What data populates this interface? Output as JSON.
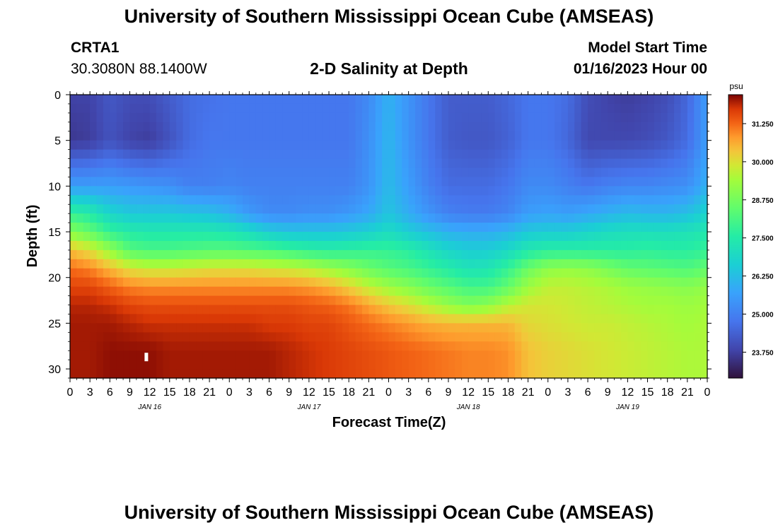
{
  "header": {
    "title": "University of Southern Mississippi Ocean Cube (AMSEAS)",
    "station_id": "CRTA1",
    "station_coords": "30.3080N  88.1400W",
    "plot_title": "2-D Salinity at Depth",
    "model_label": "Model Start Time",
    "model_time": "01/16/2023 Hour 00"
  },
  "footer": {
    "title": "University of Southern Mississippi Ocean Cube (AMSEAS)"
  },
  "chart_data": {
    "type": "heatmap",
    "title": "2-D Salinity at Depth",
    "xlabel": "Forecast Time(Z)",
    "ylabel": "Depth (ft)",
    "xlim": [
      0,
      96
    ],
    "ylim": [
      0,
      31
    ],
    "x_tick_values": [
      0,
      3,
      6,
      9,
      12,
      15,
      18,
      21,
      24,
      27,
      30,
      33,
      36,
      39,
      42,
      45,
      48,
      51,
      54,
      57,
      60,
      63,
      66,
      69,
      72,
      75,
      78,
      81,
      84,
      87,
      90,
      93,
      96
    ],
    "x_tick_labels": [
      "0",
      "3",
      "6",
      "9",
      "12",
      "15",
      "18",
      "21",
      "0",
      "3",
      "6",
      "9",
      "12",
      "15",
      "18",
      "21",
      "0",
      "3",
      "6",
      "9",
      "12",
      "15",
      "18",
      "21",
      "0",
      "3",
      "6",
      "9",
      "12",
      "15",
      "18",
      "21",
      "0"
    ],
    "day_labels": [
      {
        "label": "JAN 16",
        "x": 12
      },
      {
        "label": "JAN 17",
        "x": 36
      },
      {
        "label": "JAN 18",
        "x": 60
      },
      {
        "label": "JAN 19",
        "x": 84
      }
    ],
    "y_tick_values": [
      0,
      5,
      10,
      15,
      20,
      25,
      30
    ],
    "y_tick_labels": [
      "0",
      "5",
      "10",
      "15",
      "20",
      "25",
      "30"
    ],
    "colorbar": {
      "unit": "psu",
      "min": 22.9,
      "max": 32.2,
      "ticks": [
        31.25,
        30.0,
        28.75,
        27.5,
        26.25,
        25.0,
        23.75
      ],
      "tick_labels": [
        "31.250",
        "30.000",
        "28.750",
        "27.500",
        "26.250",
        "25.000",
        "23.750"
      ]
    },
    "salinity_grid": {
      "depth_ft": [
        0,
        5,
        10,
        13,
        15,
        17,
        19,
        21,
        23,
        25,
        28,
        31
      ],
      "time_h": [
        0,
        3,
        6,
        9,
        12,
        15,
        18,
        21,
        24,
        27,
        30,
        33,
        36,
        39,
        42,
        45,
        48,
        51,
        54,
        57,
        60,
        63,
        66,
        69,
        72,
        75,
        78,
        81,
        84,
        87,
        90,
        93,
        96
      ],
      "psu_rows": [
        [
          23.8,
          23.8,
          24.2,
          24.0,
          24.0,
          24.3,
          24.6,
          24.7,
          24.8,
          24.8,
          24.8,
          24.8,
          24.8,
          24.8,
          24.8,
          25.2,
          26.0,
          25.4,
          24.8,
          24.3,
          24.3,
          24.3,
          24.5,
          24.8,
          24.8,
          24.6,
          24.0,
          23.8,
          23.7,
          23.8,
          24.0,
          24.5,
          25.6
        ],
        [
          23.6,
          23.7,
          24.1,
          23.8,
          23.7,
          24.1,
          24.6,
          24.8,
          24.8,
          24.8,
          24.8,
          24.8,
          24.8,
          24.8,
          24.8,
          25.3,
          26.1,
          25.4,
          24.8,
          24.3,
          24.2,
          24.2,
          24.4,
          24.8,
          24.8,
          24.5,
          23.9,
          23.9,
          23.9,
          24.0,
          24.2,
          24.6,
          25.6
        ],
        [
          25.6,
          25.6,
          25.6,
          25.5,
          25.4,
          25.3,
          25.0,
          25.0,
          25.1,
          25.0,
          25.0,
          25.0,
          25.0,
          25.0,
          25.0,
          25.4,
          26.2,
          25.6,
          25.0,
          24.6,
          24.6,
          24.6,
          24.8,
          25.2,
          25.2,
          25.0,
          24.8,
          25.0,
          25.1,
          25.1,
          25.2,
          25.3,
          26.0
        ],
        [
          27.8,
          27.5,
          26.8,
          26.5,
          26.5,
          26.5,
          26.4,
          26.3,
          26.0,
          25.5,
          25.2,
          25.2,
          25.3,
          25.3,
          25.5,
          25.8,
          26.4,
          25.9,
          25.4,
          25.0,
          24.9,
          24.9,
          25.1,
          25.6,
          25.7,
          25.6,
          25.8,
          26.0,
          26.2,
          26.1,
          26.1,
          26.3,
          26.8
        ],
        [
          29.0,
          28.5,
          27.8,
          27.5,
          27.4,
          27.4,
          27.4,
          27.4,
          27.3,
          27.0,
          26.6,
          26.4,
          26.4,
          26.4,
          26.5,
          26.7,
          27.0,
          26.6,
          26.3,
          26.0,
          25.9,
          25.9,
          26.1,
          26.5,
          26.6,
          26.6,
          26.8,
          27.0,
          27.1,
          27.1,
          27.1,
          27.2,
          27.4
        ],
        [
          30.4,
          30.0,
          29.2,
          28.3,
          28.1,
          28.1,
          28.2,
          28.3,
          28.3,
          28.2,
          28.1,
          27.9,
          27.7,
          27.6,
          27.7,
          27.8,
          27.8,
          27.6,
          27.2,
          26.8,
          26.6,
          26.6,
          26.9,
          27.4,
          27.6,
          27.6,
          27.6,
          27.6,
          27.6,
          27.7,
          27.6,
          27.6,
          27.8
        ],
        [
          31.2,
          31.0,
          30.5,
          30.0,
          29.8,
          29.8,
          29.9,
          30.0,
          30.0,
          30.0,
          29.9,
          29.8,
          29.6,
          29.3,
          29.0,
          28.6,
          28.3,
          28.1,
          27.8,
          27.5,
          27.2,
          27.3,
          27.8,
          28.6,
          29.1,
          29.2,
          29.1,
          28.8,
          28.5,
          28.4,
          28.3,
          28.2,
          28.5
        ],
        [
          31.6,
          31.6,
          31.3,
          31.0,
          30.9,
          30.9,
          30.9,
          30.9,
          30.9,
          30.9,
          30.9,
          30.9,
          30.8,
          30.6,
          30.2,
          29.7,
          29.3,
          29.0,
          28.6,
          28.3,
          28.0,
          28.0,
          28.5,
          29.3,
          29.7,
          29.7,
          29.6,
          29.5,
          29.3,
          29.2,
          29.1,
          29.0,
          29.2
        ],
        [
          31.9,
          31.9,
          31.8,
          31.6,
          31.5,
          31.5,
          31.5,
          31.5,
          31.5,
          31.5,
          31.5,
          31.5,
          31.4,
          31.3,
          31.1,
          30.7,
          30.3,
          30.0,
          29.6,
          29.2,
          28.9,
          29.1,
          29.6,
          29.9,
          29.9,
          29.8,
          29.7,
          29.6,
          29.5,
          29.4,
          29.4,
          29.3,
          29.4
        ],
        [
          32.0,
          32.0,
          32.0,
          31.9,
          31.8,
          31.8,
          31.8,
          31.8,
          31.8,
          31.8,
          31.7,
          31.7,
          31.6,
          31.6,
          31.4,
          31.2,
          31.0,
          30.8,
          30.6,
          30.5,
          30.5,
          30.5,
          30.5,
          30.1,
          30.0,
          29.9,
          29.8,
          29.8,
          29.7,
          29.6,
          29.5,
          29.4,
          29.5
        ],
        [
          32.0,
          32.0,
          32.1,
          32.1,
          32.1,
          32.0,
          32.0,
          32.0,
          32.0,
          32.0,
          32.0,
          31.9,
          31.8,
          31.7,
          31.6,
          31.5,
          31.4,
          31.3,
          31.2,
          31.1,
          31.0,
          31.0,
          30.9,
          30.4,
          30.2,
          30.1,
          30.0,
          29.9,
          29.8,
          29.7,
          29.6,
          29.5,
          29.5
        ],
        [
          32.0,
          32.0,
          32.1,
          32.1,
          32.1,
          32.0,
          32.0,
          32.0,
          32.0,
          32.0,
          32.0,
          31.9,
          31.8,
          31.7,
          31.6,
          31.5,
          31.4,
          31.3,
          31.2,
          31.1,
          31.0,
          31.0,
          30.9,
          30.4,
          30.2,
          30.1,
          30.0,
          29.9,
          29.8,
          29.7,
          29.6,
          29.5,
          29.5
        ]
      ]
    },
    "marker": {
      "time_h": 11.5,
      "depth_ft": 28.7
    }
  }
}
